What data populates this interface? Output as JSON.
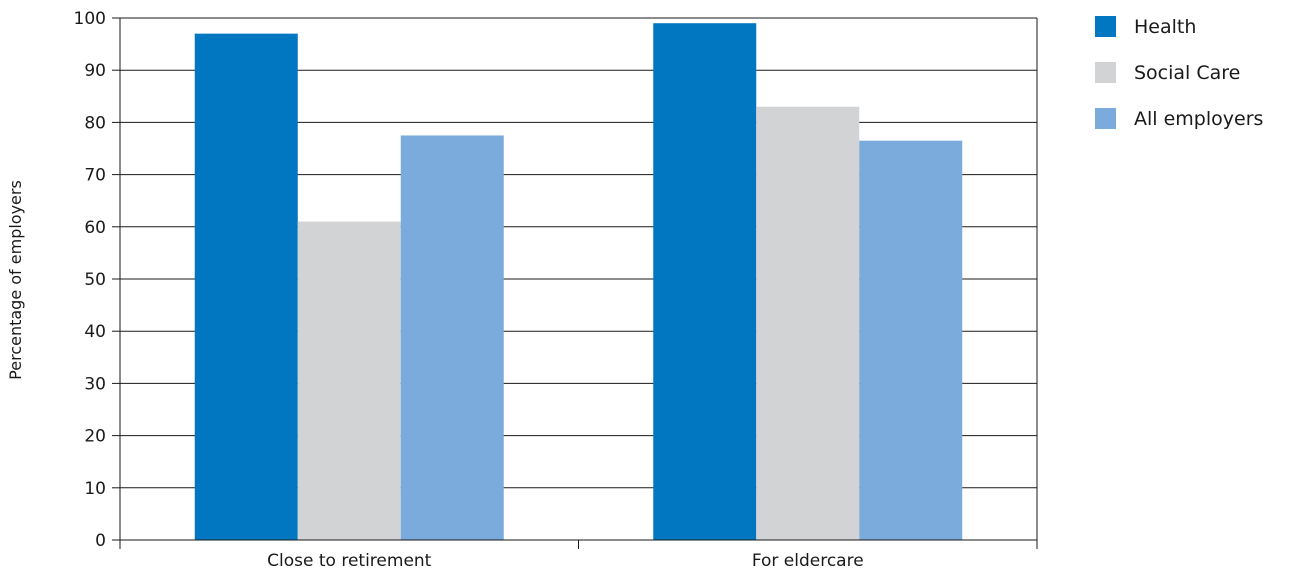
{
  "chart_data": {
    "type": "bar",
    "title": "",
    "xlabel": "",
    "ylabel": "Percentage of employers",
    "ylim": [
      0,
      100
    ],
    "yticks": [
      0,
      10,
      20,
      30,
      40,
      50,
      60,
      70,
      80,
      90,
      100
    ],
    "grid": true,
    "legend_position": "top-right",
    "categories": [
      "Close to retirement",
      "For eldercare"
    ],
    "series": [
      {
        "name": "Health",
        "color": "#0077c0",
        "values": [
          97,
          99
        ]
      },
      {
        "name": "Social Care",
        "color": "#d2d3d5",
        "values": [
          61,
          83
        ]
      },
      {
        "name": "All employers",
        "color": "#7aabdc",
        "values": [
          77.5,
          76.5
        ]
      }
    ]
  }
}
